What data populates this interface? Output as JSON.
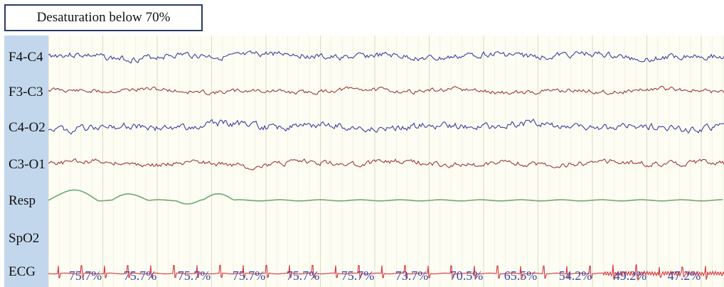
{
  "annotation": {
    "title": "Desaturation below 70%"
  },
  "channels": [
    {
      "label": "F4-C4",
      "type": "eeg",
      "color": "#3b3fa0"
    },
    {
      "label": "F3-C3",
      "type": "eeg",
      "color": "#9b3a3a"
    },
    {
      "label": "C4-O2",
      "type": "eeg",
      "color": "#3b3fa0"
    },
    {
      "label": "C3-O1",
      "type": "eeg",
      "color": "#9b3a3a"
    },
    {
      "label": "Resp",
      "type": "resp",
      "color": "#6aaa72"
    },
    {
      "label": "SpO2",
      "type": "values",
      "color": "#3d46a3"
    },
    {
      "label": "ECG",
      "type": "ecg",
      "color": "#d8343a"
    }
  ],
  "spo2_values": [
    "75.7%",
    "75.7%",
    "75.7%",
    "75.7%",
    "75.7%",
    "75.7%",
    "73.7%",
    "70.5%",
    "65.5%",
    "54.2%",
    "49.2%",
    "47.2%"
  ],
  "colors": {
    "background": "#fdfdf4",
    "label_column": "#c3d7ec",
    "grid_major": "#d9dcc4",
    "grid_minor": "#ecefdc",
    "title_border": "#2b3a5e"
  }
}
